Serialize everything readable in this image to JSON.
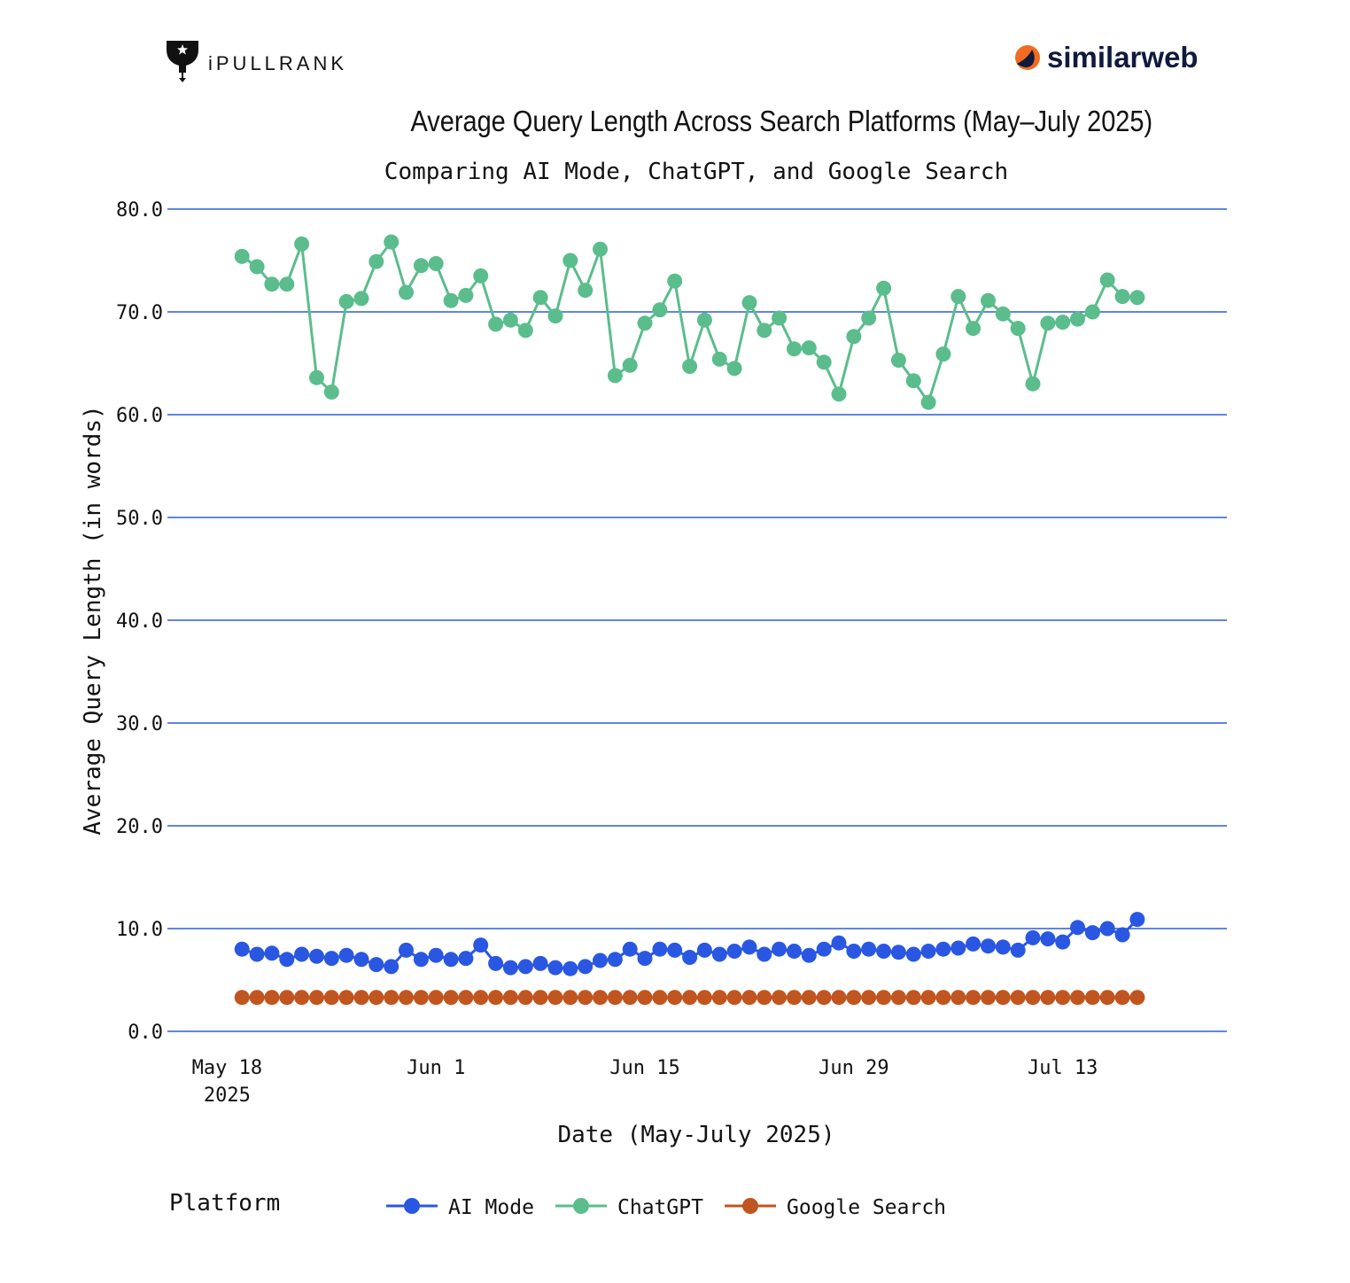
{
  "brand": {
    "left_logo_text": "iPULLRANK",
    "right_logo_text": "similarweb",
    "right_logo_color": "#f26b21",
    "dark_text_color": "#0f1b3d"
  },
  "chart_data": {
    "type": "line",
    "title": "Average Query Length Across Search Platforms (May–July 2025)",
    "subtitle": "Comparing AI Mode, ChatGPT, and Google Search",
    "xlabel": "Date (May-July 2025)",
    "ylabel": "Average Query Length (in words)",
    "ylim": [
      0,
      80
    ],
    "y_ticks": [
      "0.0",
      "10.0",
      "20.0",
      "30.0",
      "40.0",
      "50.0",
      "60.0",
      "70.0",
      "80.0"
    ],
    "x_range": [
      "2025-05-14",
      "2025-07-24"
    ],
    "x_ticks": [
      {
        "date": "2025-05-18",
        "label": "May 18",
        "sublabel": "2025"
      },
      {
        "date": "2025-06-01",
        "label": "Jun 1",
        "sublabel": ""
      },
      {
        "date": "2025-06-15",
        "label": "Jun 15",
        "sublabel": ""
      },
      {
        "date": "2025-06-29",
        "label": "Jun 29",
        "sublabel": ""
      },
      {
        "date": "2025-07-13",
        "label": "Jul 13",
        "sublabel": ""
      }
    ],
    "x_start": "2025-05-19",
    "grid": true,
    "gridline_color": "#2d5fd6",
    "legend": {
      "title": "Platform",
      "placement": "bottom"
    },
    "series": [
      {
        "name": "AI Mode",
        "color": "#2a57e2",
        "values": [
          8.0,
          7.5,
          7.6,
          7.0,
          7.5,
          7.3,
          7.1,
          7.4,
          7.0,
          6.5,
          6.3,
          7.9,
          7.0,
          7.4,
          7.0,
          7.1,
          8.4,
          6.6,
          6.2,
          6.3,
          6.6,
          6.2,
          6.1,
          6.3,
          6.9,
          7.0,
          8.0,
          7.1,
          8.0,
          7.9,
          7.2,
          7.9,
          7.5,
          7.8,
          8.2,
          7.5,
          8.0,
          7.8,
          7.4,
          8.0,
          8.6,
          7.8,
          8.0,
          7.8,
          7.7,
          7.5,
          7.8,
          8.0,
          8.1,
          8.5,
          8.3,
          8.2,
          7.9,
          9.1,
          9.0,
          8.7,
          10.1,
          9.6,
          10.0,
          9.4,
          10.9
        ]
      },
      {
        "name": "ChatGPT",
        "color": "#5bbd8c",
        "values": [
          75.4,
          74.4,
          72.7,
          72.7,
          76.6,
          63.6,
          62.2,
          71.0,
          71.3,
          74.9,
          76.8,
          71.9,
          74.5,
          74.7,
          71.1,
          71.6,
          73.5,
          68.8,
          69.2,
          68.2,
          71.4,
          69.6,
          75.0,
          72.1,
          76.1,
          63.8,
          64.8,
          68.9,
          70.2,
          73.0,
          64.7,
          69.2,
          65.4,
          64.5,
          70.9,
          68.2,
          69.4,
          66.4,
          66.5,
          65.1,
          62.0,
          67.6,
          69.4,
          72.3,
          65.3,
          63.3,
          61.2,
          65.9,
          71.5,
          68.4,
          71.1,
          69.8,
          68.4,
          63.0,
          68.9,
          69.0,
          69.3,
          70.0,
          73.1,
          71.5,
          71.4
        ]
      },
      {
        "name": "Google Search",
        "color": "#c1551f",
        "values": [
          3.3,
          3.3,
          3.3,
          3.3,
          3.3,
          3.3,
          3.3,
          3.3,
          3.3,
          3.3,
          3.3,
          3.3,
          3.3,
          3.3,
          3.3,
          3.3,
          3.3,
          3.3,
          3.3,
          3.3,
          3.3,
          3.3,
          3.3,
          3.3,
          3.3,
          3.3,
          3.3,
          3.3,
          3.3,
          3.3,
          3.3,
          3.3,
          3.3,
          3.3,
          3.3,
          3.3,
          3.3,
          3.3,
          3.3,
          3.3,
          3.3,
          3.3,
          3.3,
          3.3,
          3.3,
          3.3,
          3.3,
          3.3,
          3.3,
          3.3,
          3.3,
          3.3,
          3.3,
          3.3,
          3.3,
          3.3,
          3.3,
          3.3,
          3.3,
          3.3,
          3.3
        ]
      }
    ]
  }
}
